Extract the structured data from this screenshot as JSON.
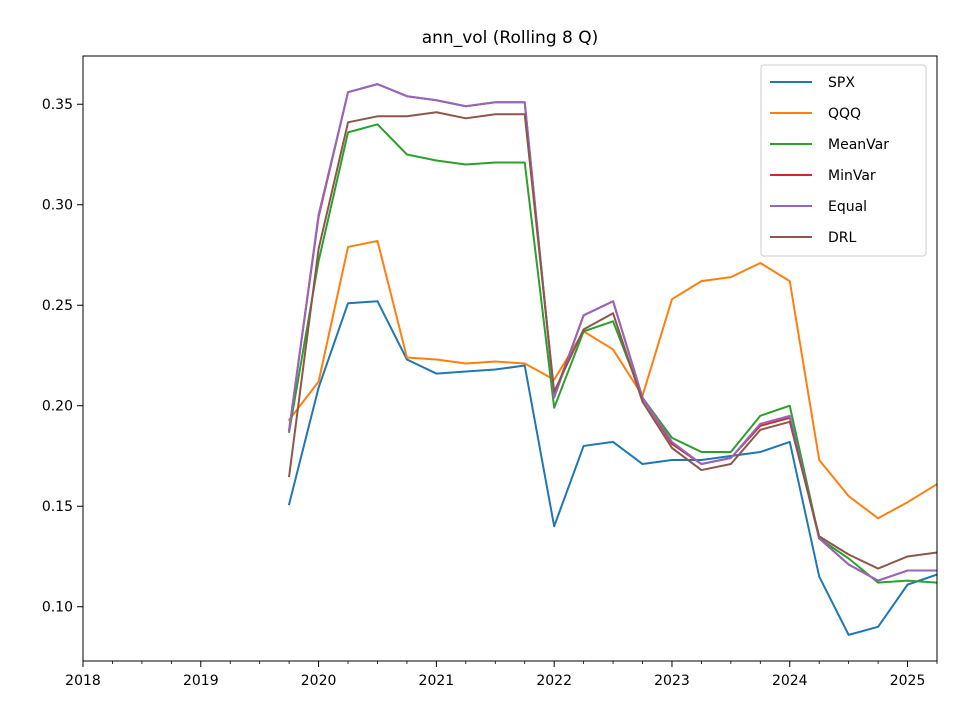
{
  "chart_data": {
    "type": "line",
    "title": "ann_vol (Rolling 8 Q)",
    "xlabel": "",
    "ylabel": "",
    "xlim": [
      2018.0,
      2025.25
    ],
    "ylim": [
      0.073,
      0.374
    ],
    "x_ticks": [
      2018,
      2019,
      2020,
      2021,
      2022,
      2023,
      2024,
      2025
    ],
    "x_tick_labels": [
      "2018",
      "2019",
      "2020",
      "2021",
      "2022",
      "2023",
      "2024",
      "2025"
    ],
    "y_ticks": [
      0.1,
      0.15,
      0.2,
      0.25,
      0.3,
      0.35
    ],
    "y_tick_labels": [
      "0.10",
      "0.15",
      "0.20",
      "0.25",
      "0.30",
      "0.35"
    ],
    "grid": false,
    "legend_position": "top-right",
    "x": [
      2019.75,
      2020.0,
      2020.25,
      2020.5,
      2020.75,
      2021.0,
      2021.25,
      2021.5,
      2021.75,
      2022.0,
      2022.25,
      2022.5,
      2022.75,
      2023.0,
      2023.25,
      2023.5,
      2023.75,
      2024.0,
      2024.25,
      2024.5,
      2024.75,
      2025.0,
      2025.25
    ],
    "series": [
      {
        "name": "SPX",
        "color": "#1f77b4",
        "values": [
          0.151,
          0.209,
          0.251,
          0.252,
          0.223,
          0.216,
          0.217,
          0.218,
          0.22,
          0.14,
          0.18,
          0.182,
          0.171,
          0.173,
          0.173,
          0.175,
          0.177,
          0.182,
          0.115,
          0.086,
          0.09,
          0.111,
          0.116
        ]
      },
      {
        "name": "QQQ",
        "color": "#ff7f0e",
        "values": [
          0.193,
          0.212,
          0.279,
          0.282,
          0.224,
          0.223,
          0.221,
          0.222,
          0.221,
          0.213,
          0.237,
          0.228,
          0.205,
          0.253,
          0.262,
          0.264,
          0.271,
          0.262,
          0.173,
          0.155,
          0.144,
          0.152,
          0.161
        ]
      },
      {
        "name": "MeanVar",
        "color": "#2ca02c",
        "values": [
          0.187,
          0.272,
          0.336,
          0.34,
          0.325,
          0.322,
          0.32,
          0.321,
          0.321,
          0.199,
          0.237,
          0.242,
          0.204,
          0.184,
          0.177,
          0.177,
          0.195,
          0.2,
          0.134,
          0.124,
          0.112,
          0.113,
          0.112
        ]
      },
      {
        "name": "MinVar",
        "color": "#d62728",
        "values": [
          0.188,
          0.294,
          0.356,
          0.36,
          0.354,
          0.352,
          0.349,
          0.351,
          0.351,
          0.205,
          0.245,
          0.252,
          0.204,
          0.181,
          0.171,
          0.174,
          0.19,
          0.194,
          0.134,
          0.121,
          0.113,
          0.118,
          0.118
        ]
      },
      {
        "name": "Equal",
        "color": "#9467bd",
        "values": [
          0.188,
          0.295,
          0.356,
          0.36,
          0.354,
          0.352,
          0.349,
          0.351,
          0.351,
          0.204,
          0.245,
          0.252,
          0.204,
          0.182,
          0.171,
          0.174,
          0.191,
          0.195,
          0.134,
          0.121,
          0.113,
          0.118,
          0.118
        ]
      },
      {
        "name": "DRL",
        "color": "#8c564b",
        "values": [
          0.165,
          0.278,
          0.341,
          0.344,
          0.344,
          0.346,
          0.343,
          0.345,
          0.345,
          0.207,
          0.238,
          0.246,
          0.202,
          0.179,
          0.168,
          0.171,
          0.188,
          0.192,
          0.135,
          0.126,
          0.119,
          0.125,
          0.127
        ]
      }
    ]
  }
}
